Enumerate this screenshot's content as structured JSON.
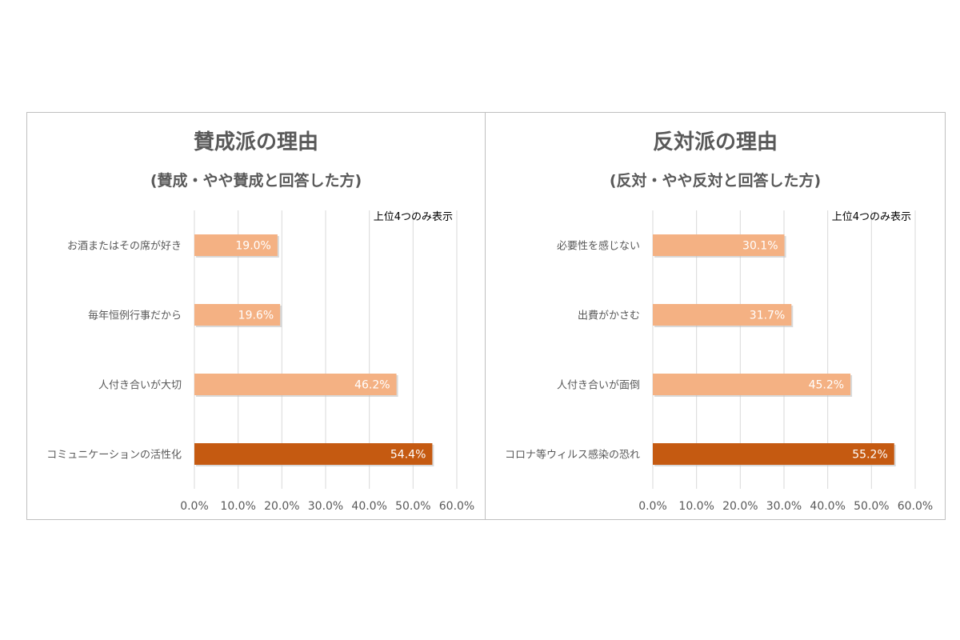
{
  "chart_data": [
    {
      "type": "bar",
      "orientation": "horizontal",
      "title": "賛成派の理由",
      "subtitle": "(賛成・やや賛成と回答した方)",
      "note": "上位4つのみ表示",
      "categories": [
        "お酒またはその席が好き",
        "毎年恒例行事だから",
        "人付き合いが大切",
        "コミュニケーションの活性化"
      ],
      "values": [
        19.0,
        19.6,
        46.2,
        54.4
      ],
      "data_labels": [
        "19.0%",
        "19.6%",
        "46.2%",
        "54.4%"
      ],
      "highlight_index": 3,
      "xlim": [
        0,
        60
      ],
      "xticks": [
        "0.0%",
        "10.0%",
        "20.0%",
        "30.0%",
        "40.0%",
        "50.0%",
        "60.0%"
      ],
      "grid": "vertical",
      "colors": {
        "bar": "#F4B183",
        "highlight": "#C55A11"
      }
    },
    {
      "type": "bar",
      "orientation": "horizontal",
      "title": "反対派の理由",
      "subtitle": "(反対・やや反対と回答した方)",
      "note": "上位4つのみ表示",
      "categories": [
        "必要性を感じない",
        "出費がかさむ",
        "人付き合いが面倒",
        "コロナ等ウィルス感染の恐れ"
      ],
      "values": [
        30.1,
        31.7,
        45.2,
        55.2
      ],
      "data_labels": [
        "30.1%",
        "31.7%",
        "45.2%",
        "55.2%"
      ],
      "highlight_index": 3,
      "xlim": [
        0,
        60
      ],
      "xticks": [
        "0.0%",
        "10.0%",
        "20.0%",
        "30.0%",
        "40.0%",
        "50.0%",
        "60.0%"
      ],
      "grid": "vertical",
      "colors": {
        "bar": "#F4B183",
        "highlight": "#C55A11"
      }
    }
  ]
}
